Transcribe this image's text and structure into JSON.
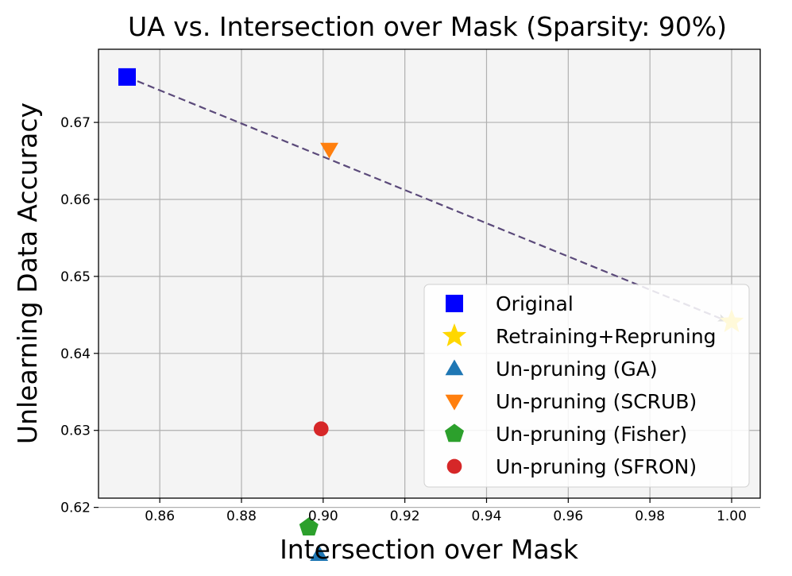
{
  "chart_data": {
    "type": "scatter",
    "title": "UA vs. Intersection over Mask (Sparsity: 90%)",
    "xlabel": "Intersection over Mask",
    "ylabel": "Unlearning Data Accuracy",
    "xlim": [
      0.845,
      1.007
    ],
    "ylim": [
      0.6212,
      0.6795
    ],
    "xticks": [
      0.86,
      0.88,
      0.9,
      0.92,
      0.94,
      0.96,
      0.98,
      1.0
    ],
    "xtick_labels": [
      "0.86",
      "0.88",
      "0.90",
      "0.92",
      "0.94",
      "0.96",
      "0.98",
      "1.00"
    ],
    "yticks": [
      0.62,
      0.63,
      0.64,
      0.65,
      0.66,
      0.67
    ],
    "ytick_labels": [
      "0.62",
      "0.63",
      "0.64",
      "0.65",
      "0.66",
      "0.67"
    ],
    "grid": true,
    "legend_position": "lower-right",
    "series": [
      {
        "name": "Original",
        "marker": "square",
        "color": "#0000ff",
        "x": 0.852,
        "y": 0.6759
      },
      {
        "name": "Retraining+Repruning",
        "marker": "star",
        "color": "#ffd700",
        "x": 1.0,
        "y": 0.6441
      },
      {
        "name": "Un-pruning (GA)",
        "marker": "triangle-up",
        "color": "#1f77b4",
        "x": 0.899,
        "y": 0.6139
      },
      {
        "name": "Un-pruning (SCRUB)",
        "marker": "triangle-down",
        "color": "#ff7f0e",
        "x": 0.9015,
        "y": 0.6665
      },
      {
        "name": "Un-pruning (Fisher)",
        "marker": "pentagon",
        "color": "#2ca02c",
        "x": 0.8965,
        "y": 0.6174
      },
      {
        "name": "Un-pruning (SFRON)",
        "marker": "circle",
        "color": "#d62728",
        "x": 0.8995,
        "y": 0.6302
      }
    ],
    "arrow": {
      "from": [
        0.852,
        0.6759
      ],
      "to": [
        1.0,
        0.6441
      ],
      "color": "#5b4a7a",
      "style": "dashed"
    }
  }
}
